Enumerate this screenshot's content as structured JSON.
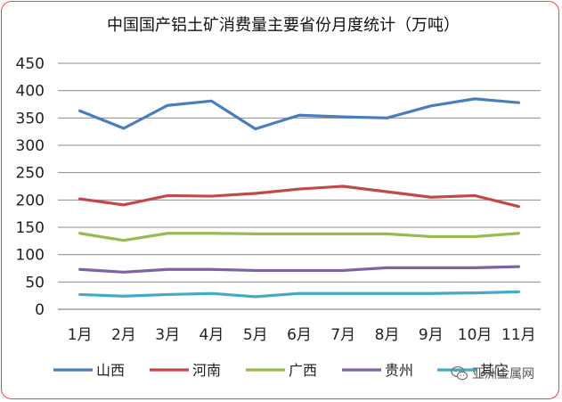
{
  "chart_data": {
    "type": "line",
    "title": "中国国产铝土矿消费量主要省份月度统计（万吨）",
    "xlabel": "",
    "ylabel": "",
    "categories": [
      "1月",
      "2月",
      "3月",
      "4月",
      "5月",
      "6月",
      "7月",
      "8月",
      "9月",
      "10月",
      "11月"
    ],
    "ylim": [
      0,
      450
    ],
    "yticks": [
      0,
      50,
      100,
      150,
      200,
      250,
      300,
      350,
      400,
      450
    ],
    "grid": true,
    "legend_position": "bottom",
    "series": [
      {
        "name": "山西",
        "color": "#4a7ebb",
        "values": [
          363,
          331,
          373,
          381,
          330,
          355,
          352,
          350,
          372,
          385,
          378
        ]
      },
      {
        "name": "河南",
        "color": "#be4b48",
        "values": [
          202,
          191,
          208,
          207,
          212,
          220,
          225,
          215,
          205,
          208,
          188
        ]
      },
      {
        "name": "广西",
        "color": "#98b954",
        "values": [
          139,
          126,
          139,
          139,
          138,
          138,
          138,
          138,
          133,
          133,
          139
        ]
      },
      {
        "name": "贵州",
        "color": "#7e62a1",
        "values": [
          73,
          68,
          73,
          73,
          71,
          71,
          71,
          76,
          76,
          76,
          78
        ]
      },
      {
        "name": "其它",
        "color": "#46aac4",
        "values": [
          27,
          24,
          27,
          29,
          23,
          29,
          29,
          29,
          29,
          30,
          32
        ]
      }
    ]
  },
  "watermark": {
    "text": "亚洲金属网",
    "icon": "wechat-icon"
  }
}
